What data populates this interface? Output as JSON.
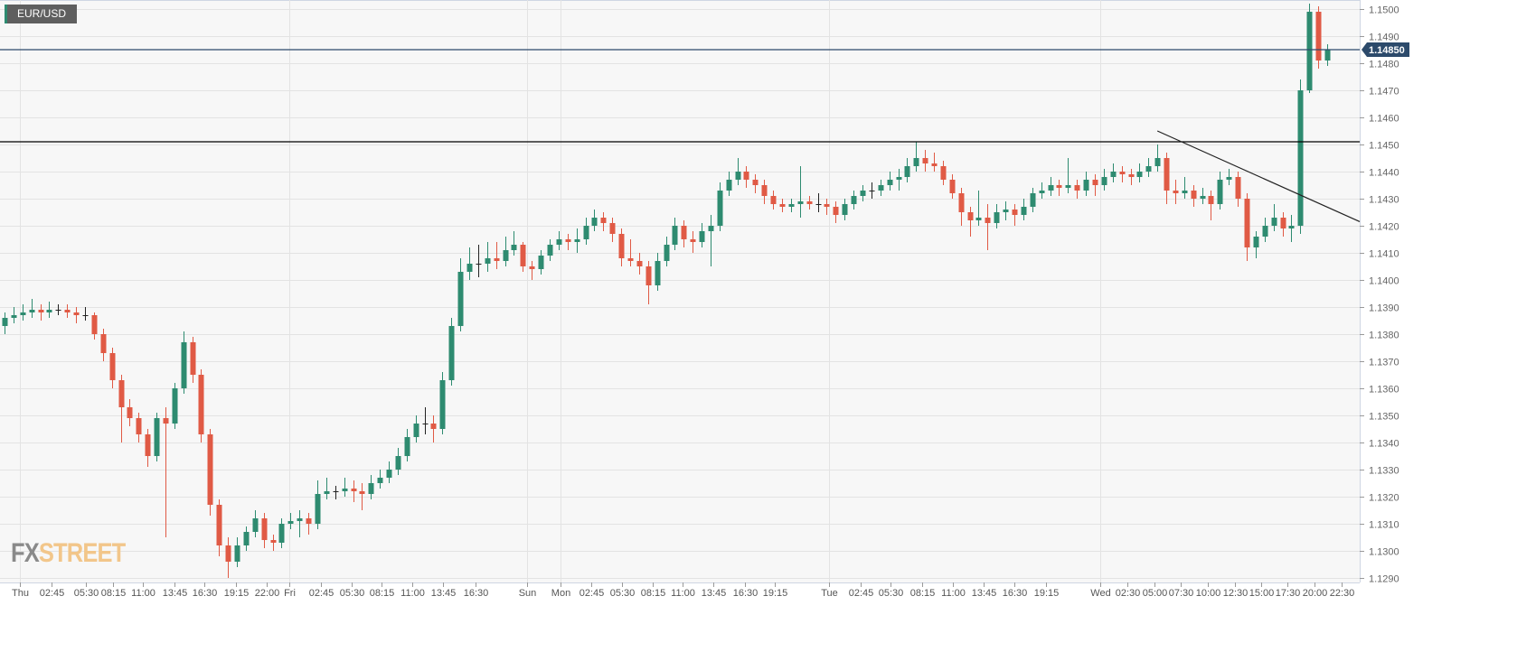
{
  "symbol": "EUR/USD",
  "watermark": {
    "part1": "FX",
    "part2": "STREET"
  },
  "colors": {
    "up": "#2e8b70",
    "down": "#e05a45",
    "background": "#f7f7f7",
    "grid": "#e3e3e3",
    "current_price_line": "#2c4a6b",
    "resistance_line": "#000000",
    "trendline": "#222222"
  },
  "current_price_label": "1.14850",
  "chart_data": {
    "type": "candlestick",
    "title": "EUR/USD",
    "ylim": [
      1.129,
      1.15
    ],
    "y_ticks": [
      "1.1500",
      "1.1490",
      "1.1480",
      "1.1470",
      "1.1460",
      "1.1450",
      "1.1440",
      "1.1430",
      "1.1420",
      "1.1410",
      "1.1400",
      "1.1390",
      "1.1380",
      "1.1370",
      "1.1360",
      "1.1350",
      "1.1340",
      "1.1330",
      "1.1320",
      "1.1310",
      "1.1300",
      "1.1290"
    ],
    "x_ticks": [
      "Thu",
      "02:45",
      "05:30",
      "08:15",
      "11:00",
      "13:45",
      "16:30",
      "19:15",
      "22:00",
      "Fri",
      "02:45",
      "05:30",
      "08:15",
      "11:00",
      "13:45",
      "16:30",
      "Sun",
      "Mon",
      "02:45",
      "05:30",
      "08:15",
      "11:00",
      "13:45",
      "16:30",
      "19:15",
      "Tue",
      "02:45",
      "05:30",
      "08:15",
      "11:00",
      "13:45",
      "16:30",
      "19:15",
      "Wed",
      "02:30",
      "05:00",
      "07:30",
      "10:00",
      "12:30",
      "15:00",
      "17:30",
      "20:00",
      "22:30"
    ],
    "grid": true,
    "current_price": 1.1485,
    "horizontal_levels": [
      1.1451,
      1.1485
    ],
    "trendline": {
      "from": {
        "candle": 129,
        "price": 1.1455
      },
      "to": {
        "candle": 152,
        "price": 1.1421
      }
    },
    "ohlc": [
      [
        1.1383,
        1.1388,
        1.138,
        1.1386
      ],
      [
        1.1386,
        1.139,
        1.1384,
        1.1387
      ],
      [
        1.1387,
        1.1391,
        1.1385,
        1.1388
      ],
      [
        1.1388,
        1.1393,
        1.1386,
        1.1389
      ],
      [
        1.1389,
        1.1391,
        1.1385,
        1.1388
      ],
      [
        1.1388,
        1.1392,
        1.1386,
        1.1389
      ],
      [
        1.1389,
        1.1391,
        1.1387,
        1.1389
      ],
      [
        1.1389,
        1.1391,
        1.1386,
        1.1388
      ],
      [
        1.1388,
        1.139,
        1.1384,
        1.1387
      ],
      [
        1.1387,
        1.139,
        1.1385,
        1.1387
      ],
      [
        1.1387,
        1.1388,
        1.1378,
        1.138
      ],
      [
        1.138,
        1.1382,
        1.137,
        1.1373
      ],
      [
        1.1373,
        1.1375,
        1.136,
        1.1363
      ],
      [
        1.1363,
        1.1365,
        1.134,
        1.1353
      ],
      [
        1.1353,
        1.1356,
        1.1346,
        1.1349
      ],
      [
        1.1349,
        1.1351,
        1.134,
        1.1343
      ],
      [
        1.1343,
        1.1345,
        1.1331,
        1.1335
      ],
      [
        1.1335,
        1.1351,
        1.1333,
        1.1349
      ],
      [
        1.1349,
        1.1353,
        1.1305,
        1.1347
      ],
      [
        1.1347,
        1.1362,
        1.1345,
        1.136
      ],
      [
        1.136,
        1.1381,
        1.1358,
        1.1377
      ],
      [
        1.1377,
        1.1379,
        1.1362,
        1.1365
      ],
      [
        1.1365,
        1.1367,
        1.134,
        1.1343
      ],
      [
        1.1343,
        1.1345,
        1.1313,
        1.1317
      ],
      [
        1.1317,
        1.1319,
        1.1298,
        1.1302
      ],
      [
        1.1302,
        1.1305,
        1.129,
        1.1296
      ],
      [
        1.1296,
        1.1305,
        1.1294,
        1.1302
      ],
      [
        1.1302,
        1.1309,
        1.13,
        1.1307
      ],
      [
        1.1307,
        1.1315,
        1.1305,
        1.1312
      ],
      [
        1.1312,
        1.1314,
        1.1301,
        1.1304
      ],
      [
        1.1304,
        1.1306,
        1.13,
        1.1303
      ],
      [
        1.1303,
        1.1312,
        1.1301,
        1.131
      ],
      [
        1.131,
        1.1314,
        1.1308,
        1.1311
      ],
      [
        1.1311,
        1.1315,
        1.1305,
        1.1312
      ],
      [
        1.1312,
        1.1314,
        1.1306,
        1.131
      ],
      [
        1.131,
        1.1326,
        1.1308,
        1.1321
      ],
      [
        1.1321,
        1.1327,
        1.1319,
        1.1322
      ],
      [
        1.1322,
        1.1324,
        1.1319,
        1.1322
      ],
      [
        1.1322,
        1.1327,
        1.132,
        1.1323
      ],
      [
        1.1323,
        1.1326,
        1.1318,
        1.1322
      ],
      [
        1.1322,
        1.1325,
        1.1315,
        1.1321
      ],
      [
        1.1321,
        1.1328,
        1.1319,
        1.1325
      ],
      [
        1.1325,
        1.133,
        1.1323,
        1.1327
      ],
      [
        1.1327,
        1.1333,
        1.1325,
        1.133
      ],
      [
        1.133,
        1.1338,
        1.1328,
        1.1335
      ],
      [
        1.1335,
        1.1345,
        1.1333,
        1.1342
      ],
      [
        1.1342,
        1.135,
        1.134,
        1.1347
      ],
      [
        1.1347,
        1.1353,
        1.1343,
        1.1347
      ],
      [
        1.1347,
        1.135,
        1.134,
        1.1345
      ],
      [
        1.1345,
        1.1366,
        1.1343,
        1.1363
      ],
      [
        1.1363,
        1.1386,
        1.1361,
        1.1383
      ],
      [
        1.1383,
        1.1408,
        1.1381,
        1.1403
      ],
      [
        1.1403,
        1.1412,
        1.14,
        1.1406
      ],
      [
        1.1406,
        1.1413,
        1.1401,
        1.1406
      ],
      [
        1.1406,
        1.1414,
        1.1403,
        1.1408
      ],
      [
        1.1408,
        1.1414,
        1.1404,
        1.1407
      ],
      [
        1.1407,
        1.1416,
        1.1405,
        1.1411
      ],
      [
        1.1411,
        1.1418,
        1.1409,
        1.1413
      ],
      [
        1.1413,
        1.1414,
        1.1403,
        1.1405
      ],
      [
        1.1405,
        1.1407,
        1.14,
        1.1404
      ],
      [
        1.1404,
        1.1411,
        1.1402,
        1.1409
      ],
      [
        1.1409,
        1.1415,
        1.1407,
        1.1413
      ],
      [
        1.1413,
        1.1418,
        1.1411,
        1.1415
      ],
      [
        1.1415,
        1.1417,
        1.1411,
        1.1414
      ],
      [
        1.1414,
        1.1419,
        1.141,
        1.1415
      ],
      [
        1.1415,
        1.1423,
        1.1413,
        1.142
      ],
      [
        1.142,
        1.1426,
        1.1418,
        1.1423
      ],
      [
        1.1423,
        1.1425,
        1.1418,
        1.1421
      ],
      [
        1.1421,
        1.1423,
        1.1414,
        1.1417
      ],
      [
        1.1417,
        1.1419,
        1.1405,
        1.1408
      ],
      [
        1.1408,
        1.1415,
        1.1405,
        1.1407
      ],
      [
        1.1407,
        1.141,
        1.1402,
        1.1405
      ],
      [
        1.1405,
        1.1407,
        1.1391,
        1.1398
      ],
      [
        1.1398,
        1.141,
        1.1396,
        1.1407
      ],
      [
        1.1407,
        1.1416,
        1.1405,
        1.1413
      ],
      [
        1.1413,
        1.1423,
        1.1411,
        1.142
      ],
      [
        1.142,
        1.1422,
        1.1412,
        1.1415
      ],
      [
        1.1415,
        1.1418,
        1.141,
        1.1414
      ],
      [
        1.1414,
        1.1421,
        1.1412,
        1.1418
      ],
      [
        1.1418,
        1.1424,
        1.1405,
        1.142
      ],
      [
        1.142,
        1.1436,
        1.1418,
        1.1433
      ],
      [
        1.1433,
        1.144,
        1.1431,
        1.1437
      ],
      [
        1.1437,
        1.1445,
        1.1435,
        1.144
      ],
      [
        1.144,
        1.1442,
        1.1434,
        1.1437
      ],
      [
        1.1437,
        1.1439,
        1.1432,
        1.1435
      ],
      [
        1.1435,
        1.1437,
        1.1428,
        1.1431
      ],
      [
        1.1431,
        1.1433,
        1.1426,
        1.1428
      ],
      [
        1.1428,
        1.143,
        1.1425,
        1.1427
      ],
      [
        1.1427,
        1.143,
        1.1425,
        1.1428
      ],
      [
        1.1428,
        1.1442,
        1.1423,
        1.1429
      ],
      [
        1.1429,
        1.1431,
        1.1426,
        1.1428
      ],
      [
        1.1428,
        1.1432,
        1.1425,
        1.1428
      ],
      [
        1.1428,
        1.143,
        1.1424,
        1.1427
      ],
      [
        1.1427,
        1.1429,
        1.1421,
        1.1424
      ],
      [
        1.1424,
        1.143,
        1.1422,
        1.1428
      ],
      [
        1.1428,
        1.1433,
        1.1426,
        1.1431
      ],
      [
        1.1431,
        1.1435,
        1.1429,
        1.1433
      ],
      [
        1.1433,
        1.1436,
        1.143,
        1.1433
      ],
      [
        1.1433,
        1.1437,
        1.1431,
        1.1435
      ],
      [
        1.1435,
        1.144,
        1.1433,
        1.1437
      ],
      [
        1.1437,
        1.1441,
        1.1433,
        1.1438
      ],
      [
        1.1438,
        1.1445,
        1.1436,
        1.1442
      ],
      [
        1.1442,
        1.1451,
        1.144,
        1.1445
      ],
      [
        1.1445,
        1.1448,
        1.144,
        1.1443
      ],
      [
        1.1443,
        1.1447,
        1.144,
        1.1442
      ],
      [
        1.1442,
        1.1444,
        1.1435,
        1.1437
      ],
      [
        1.1437,
        1.1439,
        1.143,
        1.1432
      ],
      [
        1.1432,
        1.1434,
        1.142,
        1.1425
      ],
      [
        1.1425,
        1.1427,
        1.1416,
        1.1422
      ],
      [
        1.1422,
        1.1433,
        1.142,
        1.1423
      ],
      [
        1.1423,
        1.1428,
        1.1411,
        1.1421
      ],
      [
        1.1421,
        1.1428,
        1.1419,
        1.1425
      ],
      [
        1.1425,
        1.1429,
        1.1422,
        1.1426
      ],
      [
        1.1426,
        1.1428,
        1.142,
        1.1424
      ],
      [
        1.1424,
        1.143,
        1.1422,
        1.1427
      ],
      [
        1.1427,
        1.1434,
        1.1425,
        1.1432
      ],
      [
        1.1432,
        1.1436,
        1.143,
        1.1433
      ],
      [
        1.1433,
        1.1438,
        1.1431,
        1.1435
      ],
      [
        1.1435,
        1.1437,
        1.1431,
        1.1434
      ],
      [
        1.1434,
        1.1445,
        1.1432,
        1.1435
      ],
      [
        1.1435,
        1.1437,
        1.143,
        1.1433
      ],
      [
        1.1433,
        1.144,
        1.1431,
        1.1437
      ],
      [
        1.1437,
        1.1439,
        1.1431,
        1.1435
      ],
      [
        1.1435,
        1.1441,
        1.1433,
        1.1438
      ],
      [
        1.1438,
        1.1443,
        1.1436,
        1.144
      ],
      [
        1.144,
        1.1442,
        1.1436,
        1.1439
      ],
      [
        1.1439,
        1.1441,
        1.1435,
        1.1438
      ],
      [
        1.1438,
        1.1443,
        1.1436,
        1.144
      ],
      [
        1.144,
        1.1445,
        1.1438,
        1.1442
      ],
      [
        1.1442,
        1.145,
        1.144,
        1.1445
      ],
      [
        1.1445,
        1.1447,
        1.1428,
        1.1433
      ],
      [
        1.1433,
        1.1437,
        1.1428,
        1.1432
      ],
      [
        1.1432,
        1.1438,
        1.143,
        1.1433
      ],
      [
        1.1433,
        1.1435,
        1.1427,
        1.143
      ],
      [
        1.143,
        1.1434,
        1.1428,
        1.1431
      ],
      [
        1.1431,
        1.1433,
        1.1422,
        1.1428
      ],
      [
        1.1428,
        1.144,
        1.1426,
        1.1437
      ],
      [
        1.1437,
        1.1441,
        1.1435,
        1.1438
      ],
      [
        1.1438,
        1.144,
        1.1427,
        1.143
      ],
      [
        1.143,
        1.1432,
        1.1407,
        1.1412
      ],
      [
        1.1412,
        1.1418,
        1.1408,
        1.1416
      ],
      [
        1.1416,
        1.1423,
        1.1414,
        1.142
      ],
      [
        1.142,
        1.1428,
        1.1418,
        1.1423
      ],
      [
        1.1423,
        1.1425,
        1.1416,
        1.1419
      ],
      [
        1.1419,
        1.1424,
        1.1414,
        1.142
      ],
      [
        1.142,
        1.1474,
        1.1417,
        1.147
      ],
      [
        1.147,
        1.1502,
        1.1469,
        1.1499
      ],
      [
        1.1499,
        1.1501,
        1.1478,
        1.1481
      ],
      [
        1.1481,
        1.1487,
        1.1479,
        1.1485
      ]
    ]
  }
}
